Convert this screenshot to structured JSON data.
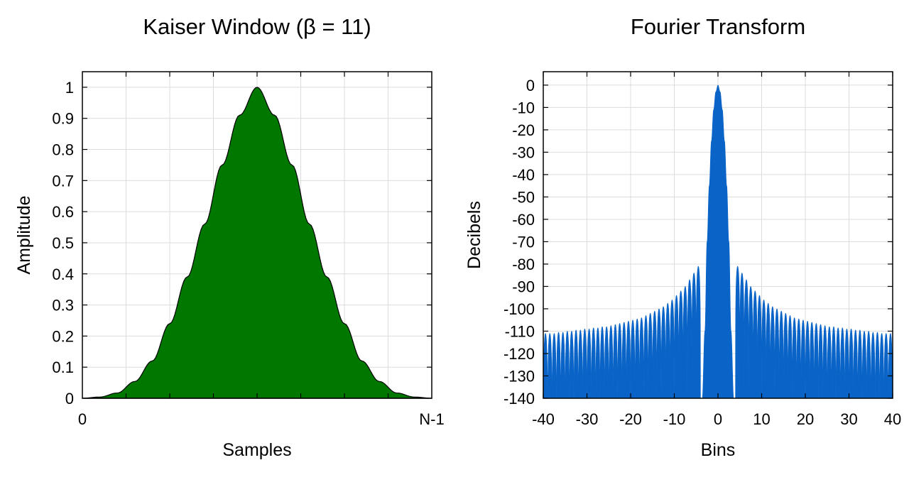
{
  "chart_data": [
    {
      "type": "area",
      "title": "Kaiser Window (β = 11)",
      "xlabel": "Samples",
      "ylabel": "Amplitude",
      "x_tick_labels": [
        "0",
        "N-1"
      ],
      "y_ticks": [
        0,
        0.1,
        0.2,
        0.3,
        0.4,
        0.5,
        0.6,
        0.7,
        0.8,
        0.9,
        1
      ],
      "y_tick_labels": [
        "0",
        "0.1",
        "0.2",
        "0.3",
        "0.4",
        "0.5",
        "0.6",
        "0.7",
        "0.8",
        "0.9",
        "1"
      ],
      "xlim": [
        0,
        1
      ],
      "ylim": [
        0,
        1.05
      ],
      "grid": true,
      "fill_color": "#007800",
      "series": [
        {
          "x": [
            0,
            0.05,
            0.1,
            0.15,
            0.2,
            0.25,
            0.3,
            0.35,
            0.4,
            0.45,
            0.5,
            0.55,
            0.6,
            0.65,
            0.7,
            0.75,
            0.8,
            0.85,
            0.9,
            0.95,
            1
          ],
          "values": [
            0.0002,
            0.004,
            0.017,
            0.054,
            0.12,
            0.24,
            0.39,
            0.56,
            0.75,
            0.91,
            1.0,
            0.91,
            0.75,
            0.56,
            0.39,
            0.24,
            0.12,
            0.054,
            0.017,
            0.004,
            0.0002
          ]
        }
      ]
    },
    {
      "type": "area",
      "title": "Fourier Transform",
      "xlabel": "Bins",
      "ylabel": "Decibels",
      "x_ticks": [
        -40,
        -30,
        -20,
        -10,
        0,
        10,
        20,
        30,
        40
      ],
      "x_tick_labels": [
        "-40",
        "-30",
        "-20",
        "-10",
        "0",
        "10",
        "20",
        "30",
        "40"
      ],
      "y_ticks": [
        0,
        -10,
        -20,
        -30,
        -40,
        -50,
        -60,
        -70,
        -80,
        -90,
        -100,
        -110,
        -120,
        -130,
        -140
      ],
      "y_tick_labels": [
        "0",
        "-10",
        "-20",
        "-30",
        "-40",
        "-50",
        "-60",
        "-70",
        "-80",
        "-90",
        "-100",
        "-110",
        "-120",
        "-130",
        "-140"
      ],
      "xlim": [
        -40,
        40
      ],
      "ylim": [
        -140,
        6
      ],
      "grid": true,
      "fill_color": "#0a64c8",
      "main_lobe": {
        "x": [
          -3.6,
          -3,
          -2.5,
          -2,
          -1.5,
          -1,
          -0.5,
          0,
          0.5,
          1,
          1.5,
          2,
          2.5,
          3,
          3.6
        ],
        "values": [
          -140,
          -110,
          -70,
          -45,
          -25,
          -11,
          -3,
          0,
          -3,
          -11,
          -25,
          -45,
          -70,
          -110,
          -140
        ]
      },
      "sidelobe_peaks": {
        "x": [
          4.5,
          5.5,
          6.5,
          7.5,
          8.5,
          9.5,
          10.5,
          11.5,
          12.5,
          13.5,
          14.5,
          15.5,
          16.5,
          17.5,
          18.5,
          19.5,
          20.5,
          21.5,
          22.5,
          23.5,
          24.5,
          25.5,
          26.5,
          27.5,
          28.5,
          29.5,
          30.5,
          31.5,
          32.5,
          33.5,
          34.5,
          35.5,
          36.5,
          37.5,
          38.5,
          39.5
        ],
        "values": [
          -81,
          -84,
          -87,
          -90,
          -92,
          -94,
          -96,
          -97.5,
          -99,
          -100,
          -101,
          -102,
          -103,
          -104,
          -104.5,
          -105,
          -105.5,
          -106,
          -106.5,
          -107,
          -107.5,
          -108,
          -108,
          -108.5,
          -108.5,
          -109,
          -109,
          -109.5,
          -109.5,
          -110,
          -110,
          -110.5,
          -110.5,
          -111,
          -111,
          -111
        ],
        "symmetric_about_zero": true,
        "nulls_at": -140
      }
    }
  ]
}
